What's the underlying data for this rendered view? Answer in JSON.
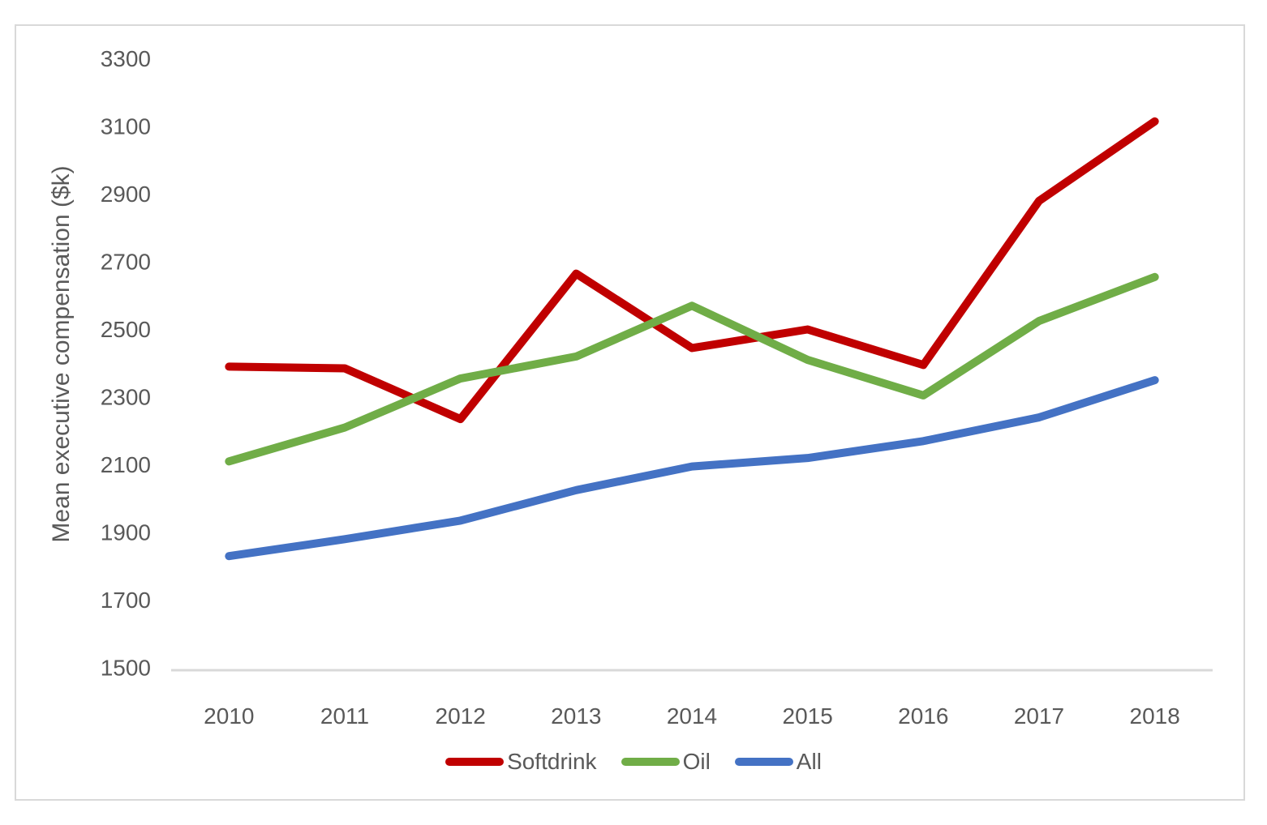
{
  "chart_data": {
    "type": "line",
    "title": "",
    "xlabel": "",
    "ylabel": "Mean executive compensation ($k)",
    "categories": [
      "2010",
      "2011",
      "2012",
      "2013",
      "2014",
      "2015",
      "2016",
      "2017",
      "2018"
    ],
    "series": [
      {
        "name": "Softdrink",
        "color": "#C00000",
        "values": [
          2390,
          2385,
          2235,
          2665,
          2445,
          2500,
          2395,
          2880,
          3115
        ]
      },
      {
        "name": "Oil",
        "color": "#70AD47",
        "values": [
          2110,
          2210,
          2355,
          2420,
          2570,
          2410,
          2305,
          2525,
          2655
        ]
      },
      {
        "name": "All",
        "color": "#4472C4",
        "values": [
          1830,
          1880,
          1935,
          2025,
          2095,
          2120,
          2170,
          2240,
          2350
        ]
      }
    ],
    "ylim": [
      1500,
      3300
    ],
    "ytick_step": 200,
    "grid": false,
    "legend_position": "bottom"
  },
  "colors": {
    "background": "#FFFFFF",
    "frame_border": "#D9D9D9",
    "axis_line": "#D9D9D9",
    "text": "#595959"
  }
}
